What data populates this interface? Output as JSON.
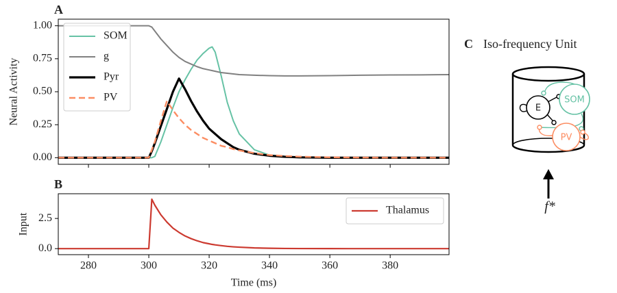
{
  "chart_data": [
    {
      "type": "line",
      "panel_label": "A",
      "ylabel": "Neural Activity",
      "x": [
        270,
        280,
        290,
        300,
        301,
        302,
        304,
        306,
        308,
        310,
        312,
        314,
        316,
        318,
        320,
        321,
        322,
        324,
        326,
        328,
        330,
        335,
        340,
        345,
        350,
        360,
        370,
        380,
        390,
        399.5
      ],
      "series": [
        {
          "name": "SOM",
          "color": "#66c2a5",
          "linestyle": "solid",
          "linewidth": 2,
          "values": [
            0,
            0,
            0,
            0,
            0,
            0.01,
            0.12,
            0.25,
            0.38,
            0.5,
            0.59,
            0.67,
            0.74,
            0.79,
            0.83,
            0.84,
            0.8,
            0.62,
            0.42,
            0.28,
            0.18,
            0.06,
            0.02,
            0.01,
            0,
            0,
            0,
            0,
            0,
            0
          ]
        },
        {
          "name": "g",
          "color": "#808080",
          "linestyle": "solid",
          "linewidth": 2,
          "values": [
            1,
            1,
            1,
            1,
            0.99,
            0.96,
            0.9,
            0.85,
            0.8,
            0.76,
            0.73,
            0.71,
            0.69,
            0.675,
            0.665,
            0.66,
            0.655,
            0.645,
            0.64,
            0.635,
            0.63,
            0.625,
            0.622,
            0.62,
            0.62,
            0.622,
            0.625,
            0.627,
            0.628,
            0.63
          ]
        },
        {
          "name": "Pyr",
          "color": "#000000",
          "linestyle": "solid",
          "linewidth": 3.2,
          "values": [
            0,
            0,
            0,
            0,
            0.05,
            0.11,
            0.24,
            0.37,
            0.5,
            0.6,
            0.52,
            0.43,
            0.35,
            0.28,
            0.22,
            0.2,
            0.18,
            0.14,
            0.11,
            0.08,
            0.06,
            0.03,
            0.015,
            0.007,
            0.003,
            0,
            0,
            0,
            0,
            0
          ]
        },
        {
          "name": "PV",
          "color": "#fc8d62",
          "linestyle": "dashed",
          "linewidth": 2.4,
          "values": [
            0,
            0,
            0,
            0,
            0.06,
            0.12,
            0.28,
            0.43,
            0.36,
            0.3,
            0.25,
            0.21,
            0.18,
            0.15,
            0.13,
            0.12,
            0.11,
            0.09,
            0.08,
            0.065,
            0.055,
            0.035,
            0.02,
            0.013,
            0.008,
            0.003,
            0.001,
            0,
            0,
            0
          ]
        }
      ],
      "xlim": [
        270,
        399.5
      ],
      "ylim": [
        -0.05,
        1.05
      ],
      "yticks": [
        {
          "value": 0,
          "label": "0.00"
        },
        0.25,
        {
          "value": 0.5,
          "label": "0.50"
        },
        0.75,
        {
          "value": 1,
          "label": "1.00"
        }
      ],
      "legend": "upper left"
    },
    {
      "type": "line",
      "panel_label": "B",
      "ylabel": "Input",
      "xlabel": "Time (ms)",
      "x": [
        270,
        280,
        290,
        300,
        301,
        302,
        304,
        306,
        308,
        310,
        312,
        314,
        316,
        318,
        320,
        321,
        322,
        324,
        326,
        328,
        330,
        335,
        340,
        345,
        350,
        360,
        370,
        380,
        390,
        399.5
      ],
      "series": [
        {
          "name": "Thalamus",
          "color": "#cc3a30",
          "linestyle": "solid",
          "linewidth": 2.2,
          "values": [
            0,
            0,
            0,
            0,
            4.1,
            3.6,
            2.8,
            2.2,
            1.7,
            1.35,
            1.05,
            0.83,
            0.65,
            0.5,
            0.4,
            0.35,
            0.31,
            0.25,
            0.19,
            0.15,
            0.12,
            0.06,
            0.03,
            0.015,
            0.008,
            0.002,
            0,
            0,
            0,
            0
          ]
        }
      ],
      "xlim": [
        270,
        399.5
      ],
      "ylim": [
        -0.5,
        4.55
      ],
      "xticks": [
        280,
        300,
        320,
        340,
        360,
        380
      ],
      "yticks": [
        {
          "value": 0,
          "label": "0.0"
        },
        2.5
      ],
      "legend": "upper right"
    }
  ],
  "diagram": {
    "panel_label": "C",
    "title": "Iso-frequency Unit",
    "nodes": [
      {
        "label": "E"
      },
      {
        "label": "SOM"
      },
      {
        "label": "PV"
      }
    ],
    "input_label": "f*"
  }
}
